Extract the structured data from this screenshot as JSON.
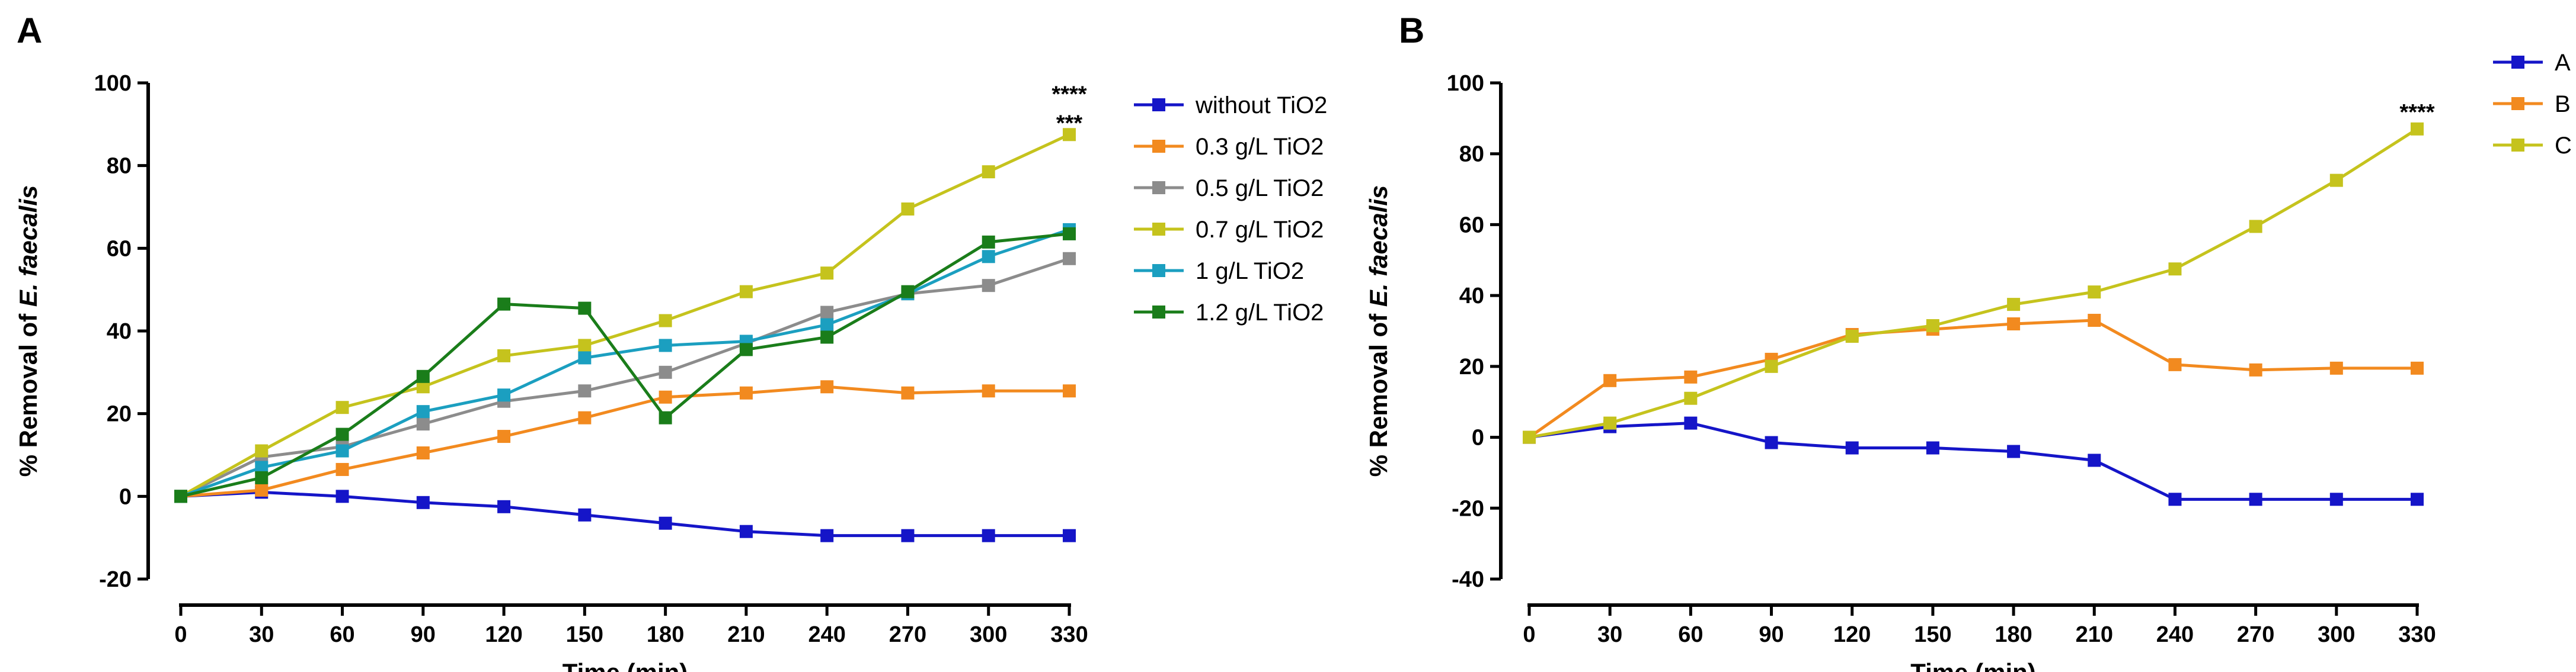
{
  "chart_data": [
    {
      "panel_label": "A",
      "type": "line",
      "xlabel": "Time (min)",
      "ylabel_prefix": "% Removal of ",
      "ylabel_species": "E. faecalis",
      "x": [
        0,
        30,
        60,
        90,
        120,
        150,
        180,
        210,
        240,
        270,
        300,
        330
      ],
      "xticks": [
        "0",
        "30",
        "60",
        "90",
        "120",
        "150",
        "180",
        "210",
        "240",
        "270",
        "300",
        "330"
      ],
      "ylim": [
        -20,
        100
      ],
      "yticks": [
        "-20",
        "0",
        "20",
        "40",
        "60",
        "80",
        "100"
      ],
      "legend_position": "right",
      "series": [
        {
          "name": "without TiO2",
          "color": "#1515c8",
          "values": [
            0,
            1,
            0,
            -1.5,
            -2.5,
            -4.5,
            -6.5,
            -8.5,
            -9.5,
            -9.5,
            -9.5,
            -9.5
          ]
        },
        {
          "name": "0.3 g/L TiO2",
          "color": "#f28a1f",
          "values": [
            0,
            1.5,
            6.5,
            10.5,
            14.5,
            19,
            24,
            25,
            26.5,
            25,
            25.5,
            25.5
          ]
        },
        {
          "name": "0.5 g/L TiO2",
          "color": "#8c8c8c",
          "values": [
            0,
            9.5,
            12,
            17.5,
            23,
            25.5,
            30,
            37,
            44.5,
            49,
            51,
            57.5
          ]
        },
        {
          "name": "0.7 g/L TiO2",
          "color": "#c5c31d",
          "values": [
            0,
            11,
            21.5,
            26.5,
            34,
            36.5,
            42.5,
            49.5,
            54,
            69.5,
            78.5,
            87.5
          ]
        },
        {
          "name": "1 g/L TiO2",
          "color": "#1b9fc0",
          "values": [
            0,
            7,
            11,
            20.5,
            24.5,
            33.5,
            36.5,
            37.5,
            41.5,
            49,
            58,
            64.5
          ]
        },
        {
          "name": "1.2 g/L TiO2",
          "color": "#1a7d1a",
          "values": [
            0,
            4.5,
            15,
            29,
            46.5,
            45.5,
            19,
            35.5,
            38.5,
            49.5,
            61.5,
            63.5
          ]
        }
      ],
      "annotations": [
        {
          "text": "****",
          "x": 330,
          "y": 97.5
        },
        {
          "text": "***",
          "x": 330,
          "y": 90.5
        }
      ]
    },
    {
      "panel_label": "B",
      "type": "line",
      "xlabel": "Time (min)",
      "ylabel_prefix": "% Removal of ",
      "ylabel_species": "E. faecalis",
      "x": [
        0,
        30,
        60,
        90,
        120,
        150,
        180,
        210,
        240,
        270,
        300,
        330
      ],
      "xticks": [
        "0",
        "30",
        "60",
        "90",
        "120",
        "150",
        "180",
        "210",
        "240",
        "270",
        "300",
        "330"
      ],
      "ylim": [
        -40,
        100
      ],
      "yticks": [
        "-40",
        "-20",
        "0",
        "20",
        "40",
        "60",
        "80",
        "100"
      ],
      "legend_position": "top-right",
      "series": [
        {
          "name": "A",
          "color": "#1515c8",
          "values": [
            0,
            3,
            4,
            -1.5,
            -3,
            -3,
            -4,
            -6.5,
            -17.5,
            -17.5,
            -17.5,
            -17.5
          ]
        },
        {
          "name": "B",
          "color": "#f28a1f",
          "values": [
            0,
            16,
            17,
            22,
            29,
            30.5,
            32,
            33,
            20.5,
            19,
            19.5,
            19.5
          ]
        },
        {
          "name": "C",
          "color": "#c5c31d",
          "values": [
            0,
            4,
            11,
            20,
            28.5,
            31.5,
            37.5,
            41,
            47.5,
            59.5,
            72.5,
            87
          ]
        }
      ],
      "annotations": [
        {
          "text": "****",
          "x": 330,
          "y": 92
        }
      ]
    }
  ]
}
